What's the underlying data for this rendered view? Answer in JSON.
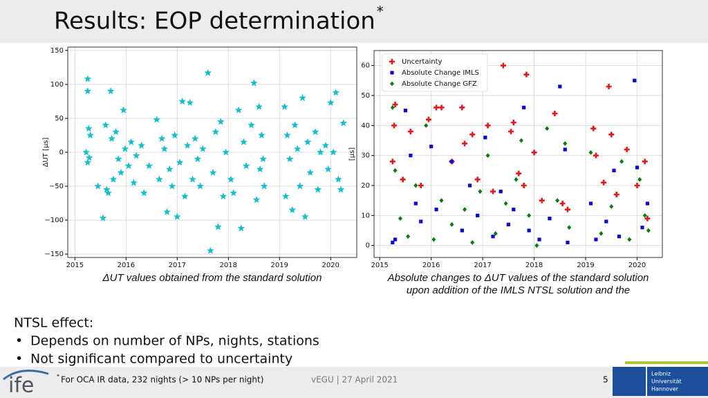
{
  "slide": {
    "title": "Results: EOP determination",
    "title_mark": "*",
    "heading": "NTSL effect:",
    "bullets": [
      "Depends on number of NPs, nights, stations",
      "Not significant compared to uncertainty"
    ],
    "footnote_mark": "*",
    "footnote": "For OCA IR data, 232 nights (> 10 NPs per night)",
    "event": "vEGU | 27 April 2021",
    "page": "5",
    "logo": "ife",
    "university": [
      "Leibniz",
      "Universität",
      "Hannover"
    ]
  },
  "chart_data": [
    {
      "type": "scatter",
      "ylabel": "ΔUT [μs]",
      "caption": [
        "ΔUT values obtained from the standard solution"
      ],
      "color": "#17bec9",
      "marker": "star",
      "grid": true,
      "xlim": [
        2014.86,
        2020.51
      ],
      "xticks": [
        2015,
        2016,
        2017,
        2018,
        2019,
        2020
      ],
      "ylim": [
        -155,
        155
      ],
      "yticks": [
        {
          "value": -150,
          "label": "−150"
        },
        {
          "value": -100,
          "label": "−100"
        },
        {
          "value": -50,
          "label": "−50"
        },
        0,
        50,
        100,
        150
      ],
      "x": [
        2015.25,
        2015.25,
        2015.27,
        2015.3,
        2015.22,
        2015.28,
        2015.25,
        2015.45,
        2015.55,
        2015.6,
        2015.62,
        2015.65,
        2015.7,
        2015.72,
        2015.75,
        2015.8,
        2015.85,
        2015.9,
        2015.95,
        2015.98,
        2016.05,
        2016.1,
        2016.15,
        2016.2,
        2016.3,
        2016.35,
        2016.45,
        2016.6,
        2016.65,
        2016.7,
        2016.75,
        2016.8,
        2016.85,
        2016.9,
        2016.95,
        2017.0,
        2017.05,
        2017.1,
        2017.15,
        2017.2,
        2017.25,
        2017.3,
        2017.35,
        2017.4,
        2017.45,
        2017.5,
        2017.6,
        2017.65,
        2017.7,
        2017.75,
        2017.8,
        2017.85,
        2017.9,
        2017.95,
        2018.05,
        2018.1,
        2018.2,
        2018.25,
        2018.3,
        2018.35,
        2018.45,
        2018.5,
        2018.55,
        2018.6,
        2018.62,
        2018.65,
        2018.68,
        2018.7,
        2019.1,
        2019.12,
        2019.15,
        2019.2,
        2019.25,
        2019.3,
        2019.35,
        2019.4,
        2019.45,
        2019.5,
        2019.55,
        2019.6,
        2019.7,
        2019.75,
        2019.8,
        2019.9,
        2019.95,
        2020.0,
        2020.05,
        2020.1,
        2020.15,
        2020.2,
        2020.25
      ],
      "values": [
        108,
        90,
        35,
        25,
        0,
        -8,
        -15,
        -50,
        -97,
        40,
        -55,
        -60,
        90,
        20,
        -40,
        30,
        -10,
        -30,
        62,
        5,
        -20,
        15,
        -45,
        -5,
        10,
        -60,
        -20,
        48,
        -40,
        20,
        5,
        -88,
        -25,
        -50,
        25,
        -95,
        -15,
        75,
        -65,
        10,
        73,
        -40,
        20,
        -10,
        -50,
        5,
        117,
        -145,
        -30,
        30,
        -110,
        45,
        -65,
        0,
        -40,
        -60,
        62,
        -112,
        15,
        -20,
        40,
        102,
        -70,
        67,
        -25,
        25,
        -10,
        -50,
        67,
        -65,
        25,
        -10,
        -85,
        40,
        5,
        -50,
        80,
        -95,
        15,
        -30,
        30,
        -55,
        0,
        10,
        -25,
        73,
        0,
        88,
        -40,
        -55,
        43
      ]
    },
    {
      "type": "scatter",
      "ylabel": "[μs]",
      "caption": [
        "Absolute changes to ΔUT values of the standard solution",
        "upon addition of the IMLS NTSL solution and the"
      ],
      "grid": true,
      "legend": "upper left",
      "xlim": [
        2014.89,
        2020.49
      ],
      "xticks": [
        2015,
        2016,
        2017,
        2018,
        2019,
        2020
      ],
      "ylim": [
        -4,
        65
      ],
      "yticks": [
        0,
        10,
        20,
        30,
        40,
        50,
        60
      ],
      "series": [
        {
          "name": "Uncertainty",
          "color": "#e31a1c",
          "marker": "plus",
          "x": [
            2015.25,
            2015.28,
            2015.3,
            2015.45,
            2015.6,
            2015.8,
            2015.95,
            2016.1,
            2016.2,
            2016.4,
            2016.6,
            2016.65,
            2016.8,
            2016.9,
            2017.1,
            2017.2,
            2017.4,
            2017.55,
            2017.6,
            2017.7,
            2017.8,
            2017.85,
            2018.0,
            2018.15,
            2018.4,
            2018.55,
            2018.65,
            2019.15,
            2019.2,
            2019.35,
            2019.45,
            2019.5,
            2019.6,
            2019.8,
            2020.0,
            2020.15,
            2020.2
          ],
          "values": [
            28,
            40,
            47,
            22,
            38,
            20,
            42,
            46,
            46,
            28,
            46,
            34,
            37,
            22,
            40,
            18,
            60,
            38,
            41,
            24,
            20,
            57,
            31,
            15,
            44,
            14,
            12,
            39,
            30,
            21,
            53,
            37,
            17,
            32,
            20,
            28,
            9
          ]
        },
        {
          "name": "Absolute Change IMLS",
          "color": "#0a0acc",
          "marker": "square",
          "x": [
            2015.25,
            2015.3,
            2015.5,
            2015.6,
            2015.7,
            2015.8,
            2016.0,
            2016.1,
            2016.4,
            2016.6,
            2016.75,
            2016.9,
            2017.05,
            2017.2,
            2017.35,
            2017.5,
            2017.6,
            2017.8,
            2017.9,
            2018.1,
            2018.3,
            2018.5,
            2018.6,
            2018.65,
            2019.1,
            2019.2,
            2019.4,
            2019.55,
            2019.65,
            2019.95,
            2020.0,
            2020.1,
            2020.2
          ],
          "values": [
            1,
            2,
            45,
            30,
            14,
            8,
            33,
            12,
            28,
            5,
            20,
            10,
            36,
            3,
            18,
            7,
            12,
            46,
            5,
            2,
            9,
            53,
            32,
            1,
            14,
            2,
            8,
            25,
            3,
            55,
            26,
            6,
            14
          ]
        },
        {
          "name": "Absolute Change GFZ",
          "color": "#0a7a0a",
          "marker": "diamond",
          "x": [
            2015.25,
            2015.3,
            2015.4,
            2015.55,
            2015.7,
            2015.9,
            2016.05,
            2016.2,
            2016.4,
            2016.65,
            2016.8,
            2016.95,
            2017.1,
            2017.25,
            2017.45,
            2017.65,
            2017.75,
            2017.9,
            2018.05,
            2018.25,
            2018.45,
            2018.6,
            2018.68,
            2019.1,
            2019.3,
            2019.5,
            2019.7,
            2019.85,
            2020.05,
            2020.15,
            2020.22
          ],
          "values": [
            46,
            25,
            9,
            3,
            20,
            40,
            2,
            15,
            7,
            12,
            1,
            18,
            30,
            4,
            14,
            22,
            35,
            10,
            0,
            39,
            15,
            34,
            6,
            31,
            4,
            13,
            28,
            2,
            22,
            10,
            5
          ]
        }
      ]
    }
  ]
}
